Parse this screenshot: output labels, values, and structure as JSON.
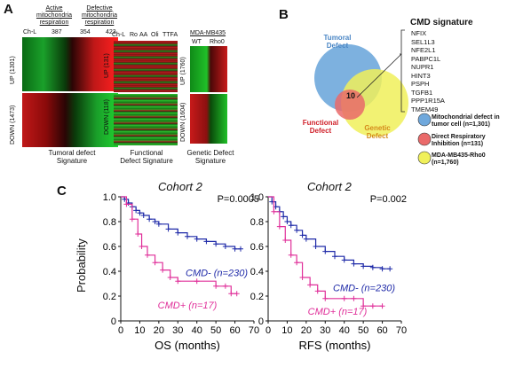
{
  "panel_a": {
    "letter": "A",
    "tumoral": {
      "header_active": "Active mitochondria respiration",
      "header_defective": "Defective mitochondria respiration",
      "col_labels": [
        "Ch-L",
        "387",
        "354",
        "423"
      ],
      "up_label": "UP (1301)",
      "down_label": "DOWN (1473)",
      "caption": "Tumoral defect Signature"
    },
    "functional": {
      "col_labels": [
        "Ch-L",
        "Ro",
        "AA",
        "Oli",
        "TTFA"
      ],
      "up_label": "UP (131)",
      "down_label": "DOWN (118)",
      "caption": "Functional Defect Signature"
    },
    "genetic": {
      "header": "MDA-MB435",
      "col_labels": [
        "WT",
        "Rho0"
      ],
      "up_label": "UP (1760)",
      "down_label": "DOWN (1604)",
      "caption": "Genetic Defect Signature"
    }
  },
  "panel_b": {
    "letter": "B",
    "signature_title": "CMD signature",
    "genes": [
      "NFIX",
      "SEL1L3",
      "NFE2L1",
      "PABPC1L",
      "NUPR1",
      "HINT3",
      "PSPH",
      "TGFB1",
      "PPP1R15A",
      "TMEM49"
    ],
    "circle_tumoral": "Tumoral Defect",
    "circle_functional": "Functional Defect",
    "circle_genetic": "Genetic Defect",
    "center_count": "10",
    "legend": [
      {
        "text": "Mitochondrial defect in tumor cell (n=1,301)",
        "color": "#6fa8dc"
      },
      {
        "text": "Direct Respiratory Inhibition (n=131)",
        "color": "#ea6a6a"
      },
      {
        "text": "MDA-MB435-Rho0 (n=1,760)",
        "color": "#f0f05a"
      }
    ],
    "colors": {
      "tumoral_label": "#4a86c5",
      "functional_label": "#d0202a",
      "genetic_label": "#d48a1a"
    }
  },
  "panel_c": {
    "letter": "C",
    "ylabel": "Probability",
    "plots": [
      {
        "title": "Cohort 2",
        "p_value": "P=0.0005",
        "xlabel": "OS (months)",
        "series_labels": [
          "CMD- (n=230)",
          "CMD+ (n=17)"
        ]
      },
      {
        "title": "Cohort 2",
        "p_value": "P=0.002",
        "xlabel": "RFS (months)",
        "series_labels": [
          "CMD- (n=230)",
          "CMD+ (n=17)"
        ]
      }
    ],
    "colors": {
      "cmd_minus": "#1f2aa8",
      "cmd_plus": "#e0309a"
    }
  },
  "chart_data": [
    {
      "type": "line",
      "title": "Cohort 2",
      "xlabel": "OS (months)",
      "ylabel": "Probability",
      "xlim": [
        0,
        70
      ],
      "ylim": [
        0,
        1.0
      ],
      "xticks": [
        0,
        10,
        20,
        30,
        40,
        50,
        60,
        70
      ],
      "yticks": [
        0,
        0.2,
        0.4,
        0.6,
        0.8,
        1.0
      ],
      "annotation": "P=0.0005",
      "series": [
        {
          "name": "CMD- (n=230)",
          "x": [
            0,
            2,
            4,
            6,
            8,
            10,
            12,
            15,
            18,
            20,
            25,
            30,
            35,
            40,
            45,
            50,
            55,
            60,
            63
          ],
          "y": [
            1.0,
            0.98,
            0.95,
            0.92,
            0.89,
            0.87,
            0.85,
            0.82,
            0.8,
            0.78,
            0.74,
            0.71,
            0.68,
            0.66,
            0.64,
            0.62,
            0.6,
            0.58,
            0.58
          ]
        },
        {
          "name": "CMD+ (n=17)",
          "x": [
            0,
            3,
            6,
            9,
            11,
            14,
            18,
            22,
            26,
            30,
            40,
            50,
            55,
            58,
            61
          ],
          "y": [
            1.0,
            0.94,
            0.82,
            0.7,
            0.6,
            0.53,
            0.47,
            0.41,
            0.35,
            0.32,
            0.32,
            0.28,
            0.28,
            0.22,
            0.22
          ]
        }
      ]
    },
    {
      "type": "line",
      "title": "Cohort 2",
      "xlabel": "RFS (months)",
      "ylabel": "Probability",
      "xlim": [
        0,
        70
      ],
      "ylim": [
        0,
        1.0
      ],
      "xticks": [
        0,
        10,
        20,
        30,
        40,
        50,
        60,
        70
      ],
      "yticks": [
        0,
        0.2,
        0.4,
        0.6,
        0.8,
        1.0
      ],
      "annotation": "P=0.002",
      "series": [
        {
          "name": "CMD- (n=230)",
          "x": [
            0,
            2,
            4,
            6,
            8,
            10,
            12,
            15,
            18,
            20,
            25,
            30,
            35,
            40,
            45,
            50,
            55,
            60,
            64
          ],
          "y": [
            1.0,
            0.96,
            0.92,
            0.88,
            0.84,
            0.8,
            0.77,
            0.73,
            0.69,
            0.66,
            0.6,
            0.56,
            0.52,
            0.49,
            0.46,
            0.44,
            0.43,
            0.42,
            0.42
          ]
        },
        {
          "name": "CMD+ (n=17)",
          "x": [
            0,
            3,
            6,
            9,
            12,
            15,
            18,
            22,
            26,
            30,
            40,
            45,
            50,
            55,
            60
          ],
          "y": [
            1.0,
            0.88,
            0.76,
            0.65,
            0.53,
            0.47,
            0.35,
            0.29,
            0.24,
            0.18,
            0.18,
            0.18,
            0.12,
            0.12,
            0.12
          ]
        }
      ]
    }
  ]
}
